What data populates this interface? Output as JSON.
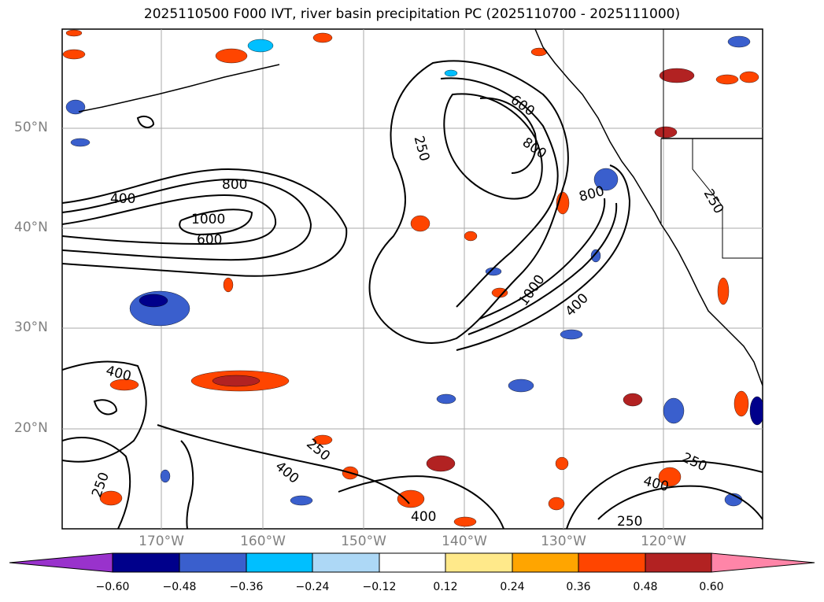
{
  "title": "2025110500 F000 IVT, river basin precipitation PC (2025110700 - 2025111000)",
  "lat_labels": [
    "50°N",
    "40°N",
    "30°N",
    "20°N"
  ],
  "lon_labels": [
    "170°W",
    "160°W",
    "150°W",
    "140°W",
    "130°W",
    "120°W"
  ],
  "contour_labels": [
    "400",
    "800",
    "1000",
    "600",
    "250",
    "600",
    "800",
    "800",
    "250",
    "1000",
    "400",
    "400",
    "400",
    "250",
    "400",
    "250",
    "250",
    "400",
    "250",
    "400",
    "250"
  ],
  "colorbar": {
    "ticks": [
      "−0.60",
      "−0.48",
      "−0.36",
      "−0.24",
      "−0.12",
      "0.12",
      "0.24",
      "0.36",
      "0.48",
      "0.60"
    ],
    "colors": [
      "#9932cc",
      "#00008b",
      "#3a5fcd",
      "#00bfff",
      "#add8f6",
      "#ffffff",
      "#ffe98a",
      "#ffa500",
      "#ff4500",
      "#b22222",
      "#ff85a8",
      "#ff85a8"
    ]
  }
}
